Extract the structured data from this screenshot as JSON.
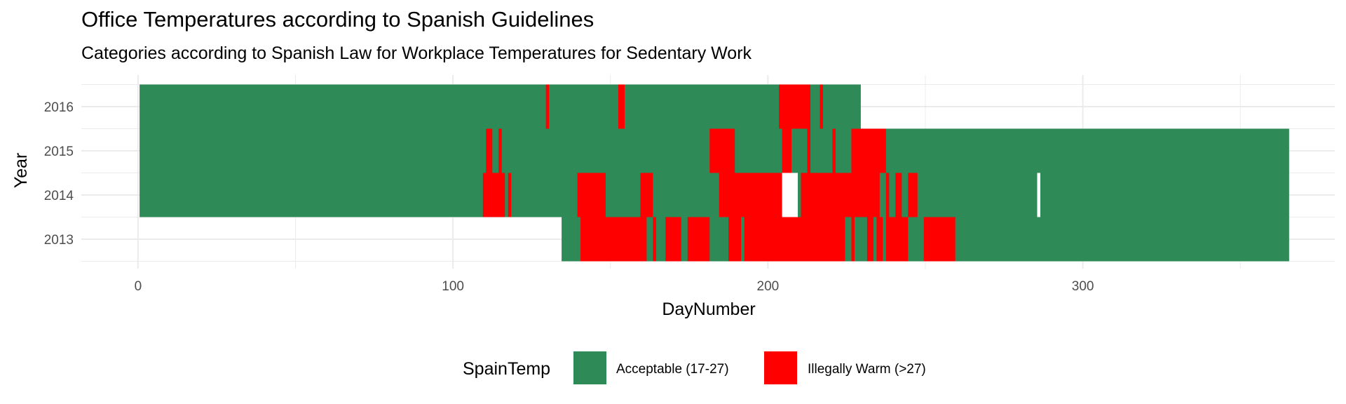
{
  "chart_data": {
    "type": "heatmap",
    "title": "Office Temperatures according to Spanish Guidelines",
    "subtitle": "Categories according to Spanish Law for Workplace Temperatures for Sedentary Work",
    "xlabel": "DayNumber",
    "ylabel": "Year",
    "xlim": [
      -18,
      380
    ],
    "x_ticks": [
      0,
      100,
      200,
      300
    ],
    "x_minor_ticks": [
      50,
      150,
      250,
      350
    ],
    "years": [
      "2013",
      "2014",
      "2015",
      "2016"
    ],
    "grid": true,
    "legend": {
      "title": "SpainTemp",
      "placement": "bottom",
      "entries": [
        {
          "label": "Acceptable (17-27)",
          "color": "#2e8b57"
        },
        {
          "label": "Illegally Warm (>27)",
          "color": "#ff0000"
        }
      ]
    },
    "series": [
      {
        "year": "2016",
        "acceptable": [
          [
            1,
            230
          ]
        ],
        "warm": [
          [
            130,
            131
          ],
          [
            153,
            155
          ],
          [
            204,
            214
          ],
          [
            217,
            218
          ]
        ],
        "missing": []
      },
      {
        "year": "2015",
        "acceptable": [
          [
            1,
            366
          ]
        ],
        "warm": [
          [
            111,
            113
          ],
          [
            115,
            116
          ],
          [
            182,
            190
          ],
          [
            205,
            208
          ],
          [
            213,
            214
          ],
          [
            221,
            222
          ],
          [
            227,
            238
          ]
        ],
        "missing": []
      },
      {
        "year": "2014",
        "acceptable": [
          [
            1,
            366
          ]
        ],
        "warm": [
          [
            110,
            117
          ],
          [
            118,
            119
          ],
          [
            140,
            149
          ],
          [
            160,
            164
          ],
          [
            185,
            206
          ],
          [
            211,
            236
          ],
          [
            238,
            239
          ],
          [
            241,
            243
          ],
          [
            245,
            248
          ]
        ],
        "missing": [
          [
            205,
            210
          ],
          [
            286,
            287
          ]
        ]
      },
      {
        "year": "2013",
        "acceptable": [
          [
            135,
            366
          ]
        ],
        "warm": [
          [
            141,
            162
          ],
          [
            164,
            165
          ],
          [
            168,
            173
          ],
          [
            175,
            182
          ],
          [
            188,
            192
          ],
          [
            193,
            225
          ],
          [
            227,
            228
          ],
          [
            232,
            234
          ],
          [
            235,
            237
          ],
          [
            238,
            245
          ],
          [
            250,
            260
          ]
        ],
        "missing": []
      }
    ]
  }
}
